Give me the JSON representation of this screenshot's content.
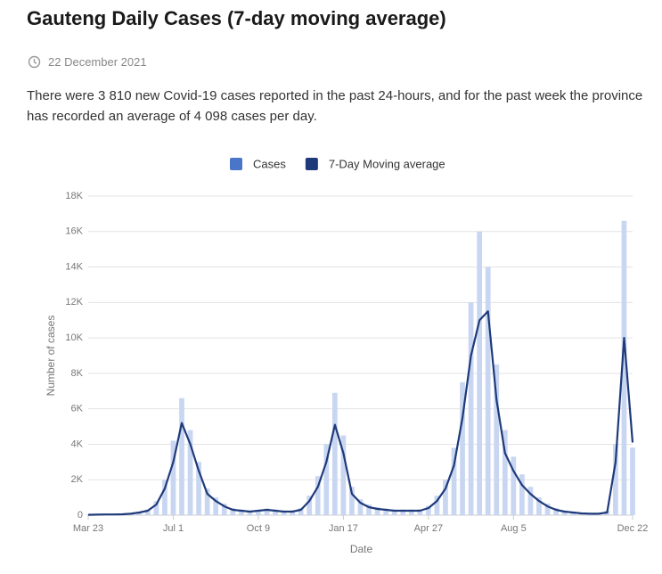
{
  "chart_data": {
    "type": "bar-line",
    "title": "Gauteng Daily Cases (7-day moving average)",
    "date": "22 December 2021",
    "description": "There were 3 810 new Covid-19 cases reported in the past 24-hours, and for the past week the province has recorded an average of 4 098 cases per day.",
    "x_label": "Date",
    "y_label": "Number of cases",
    "categories": [
      "Mar 23",
      null,
      null,
      null,
      null,
      null,
      null,
      null,
      null,
      null,
      "Jul 1",
      null,
      null,
      null,
      null,
      null,
      null,
      null,
      null,
      null,
      "Oct 9",
      null,
      null,
      null,
      null,
      null,
      null,
      null,
      null,
      null,
      "Jan 17",
      null,
      null,
      null,
      null,
      null,
      null,
      null,
      null,
      null,
      "Apr 27",
      null,
      null,
      null,
      null,
      null,
      null,
      null,
      null,
      null,
      "Aug 5",
      null,
      null,
      null,
      null,
      null,
      null,
      null,
      null,
      null,
      null,
      null,
      null,
      null,
      "Dec 22"
    ],
    "series": [
      {
        "name": "Cases",
        "color": "#4a76c9",
        "bar_color": "#c8d6f2",
        "values": [
          30,
          40,
          50,
          60,
          70,
          110,
          200,
          320,
          800,
          2000,
          4200,
          6600,
          4800,
          3000,
          1500,
          1000,
          650,
          400,
          320,
          260,
          300,
          380,
          320,
          260,
          260,
          400,
          1100,
          2200,
          4000,
          6900,
          4500,
          1600,
          900,
          600,
          450,
          380,
          320,
          320,
          320,
          330,
          520,
          1100,
          2000,
          3800,
          7500,
          12000,
          16000,
          14000,
          8500,
          4800,
          3300,
          2300,
          1600,
          1000,
          650,
          400,
          260,
          200,
          130,
          110,
          110,
          250,
          4000,
          16600,
          3810
        ]
      },
      {
        "name": "7-Day Moving average",
        "color": "#1f3a7a",
        "values": [
          20,
          30,
          40,
          40,
          50,
          80,
          150,
          250,
          600,
          1500,
          3000,
          5200,
          4000,
          2500,
          1200,
          800,
          500,
          300,
          250,
          200,
          250,
          300,
          250,
          200,
          200,
          300,
          800,
          1600,
          3000,
          5100,
          3500,
          1200,
          700,
          450,
          350,
          300,
          250,
          250,
          250,
          250,
          400,
          800,
          1500,
          2800,
          5500,
          9000,
          11000,
          11500,
          6500,
          3500,
          2500,
          1700,
          1200,
          800,
          500,
          300,
          200,
          150,
          100,
          80,
          80,
          150,
          3000,
          10000,
          4098
        ]
      }
    ],
    "ylim": [
      0,
      18000
    ],
    "yticks": [
      0,
      {
        "value": 2000,
        "label": "2K"
      },
      {
        "value": 4000,
        "label": "4K"
      },
      {
        "value": 6000,
        "label": "6K"
      },
      {
        "value": 8000,
        "label": "8K"
      },
      {
        "value": 10000,
        "label": "10K"
      },
      {
        "value": 12000,
        "label": "12K"
      },
      {
        "value": 14000,
        "label": "14K"
      },
      {
        "value": 16000,
        "label": "16K"
      },
      {
        "value": 18000,
        "label": "18K"
      }
    ],
    "grid": true
  }
}
